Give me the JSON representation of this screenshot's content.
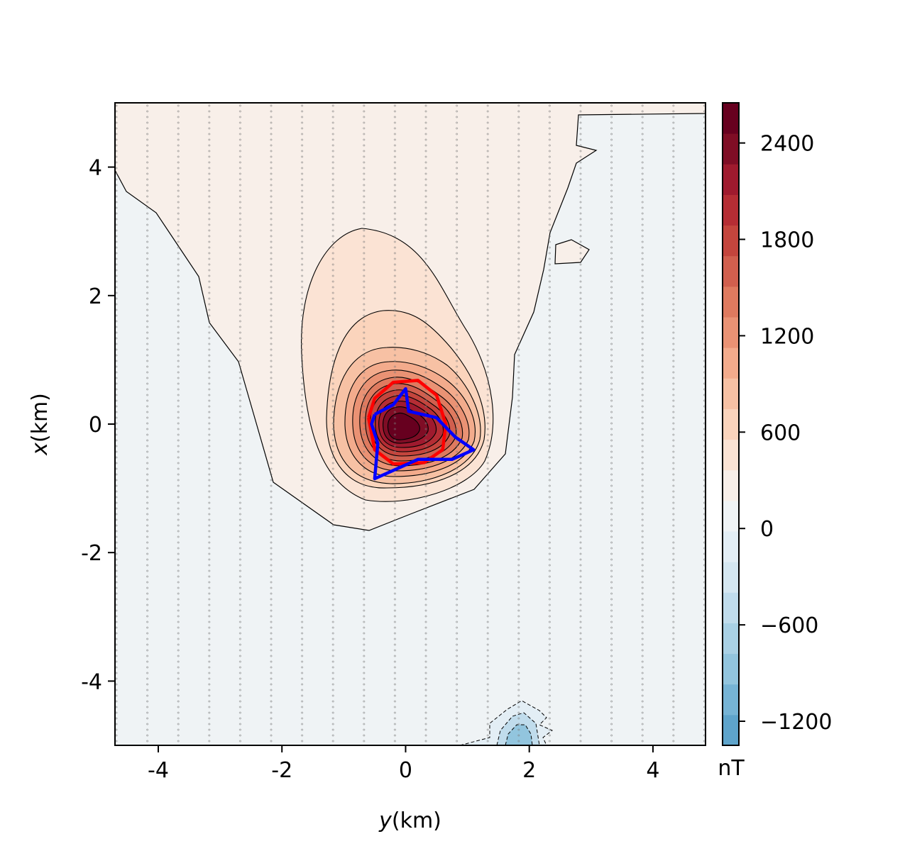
{
  "chart_data": {
    "type": "heatmap",
    "subtype": "filled-contour",
    "xlabel_var": "y",
    "xlabel_unit": "(km)",
    "ylabel_var": "x",
    "ylabel_unit": "(km)",
    "xlim": [
      -4.7,
      4.85
    ],
    "ylim": [
      -5,
      5
    ],
    "x_ticks": [
      -4,
      -2,
      0,
      2,
      4
    ],
    "x_tick_labels": [
      "-4",
      "-2",
      "0",
      "2",
      "4"
    ],
    "y_ticks": [
      4,
      2,
      0,
      -2,
      -4
    ],
    "y_tick_labels": [
      "4",
      "2",
      "0",
      "-2",
      "-4"
    ],
    "grid": false,
    "colorbar": {
      "label": "nT",
      "vmin": -1350,
      "vmax": 2650,
      "ticks": [
        2400,
        1800,
        1200,
        600,
        0,
        -600,
        -1200
      ],
      "tick_labels": [
        "2400",
        "1800",
        "1200",
        "600",
        "0",
        "−600",
        "−1200"
      ],
      "colors": [
        "#5ea4cb",
        "#76b4d5",
        "#92c5de",
        "#a9d1e5",
        "#c0dcec",
        "#d5e7f1",
        "#e3eef5",
        "#eff3f5",
        "#f8efe9",
        "#fbe3d4",
        "#fbd4bc",
        "#f7c1a4",
        "#f3ab8c",
        "#ea9274",
        "#df7a5f",
        "#d15f4e",
        "#c4453d",
        "#b52d34",
        "#9f1a2e",
        "#7f0d25",
        "#67001f"
      ]
    },
    "magnetic_anomaly_peak_nT": 2500,
    "magnetic_anomaly_peak_location": {
      "y": -0.1,
      "x": -0.1
    },
    "negative_anomaly_location": {
      "y": 1.8,
      "x": -4.8
    },
    "overlay_series": [
      {
        "color": "#ff0000",
        "style": "solid",
        "points": [
          [
            -0.6,
            0.1
          ],
          [
            -0.5,
            0.4
          ],
          [
            -0.2,
            0.65
          ],
          [
            0.2,
            0.68
          ],
          [
            0.5,
            0.45
          ],
          [
            0.65,
            0.0
          ],
          [
            0.6,
            -0.4
          ],
          [
            0.3,
            -0.6
          ],
          [
            -0.2,
            -0.62
          ],
          [
            -0.5,
            -0.4
          ],
          [
            -0.6,
            0.1
          ]
        ]
      },
      {
        "color": "#0000ff",
        "style": "solid",
        "points": [
          [
            -0.5,
            0.15
          ],
          [
            -0.2,
            0.3
          ],
          [
            0.0,
            0.55
          ],
          [
            0.05,
            0.2
          ],
          [
            0.5,
            0.1
          ],
          [
            0.8,
            -0.2
          ],
          [
            1.1,
            -0.4
          ],
          [
            0.75,
            -0.55
          ],
          [
            0.2,
            -0.55
          ],
          [
            -0.5,
            -0.85
          ],
          [
            -0.45,
            -0.3
          ],
          [
            -0.55,
            0.0
          ],
          [
            -0.5,
            0.15
          ]
        ]
      }
    ]
  }
}
